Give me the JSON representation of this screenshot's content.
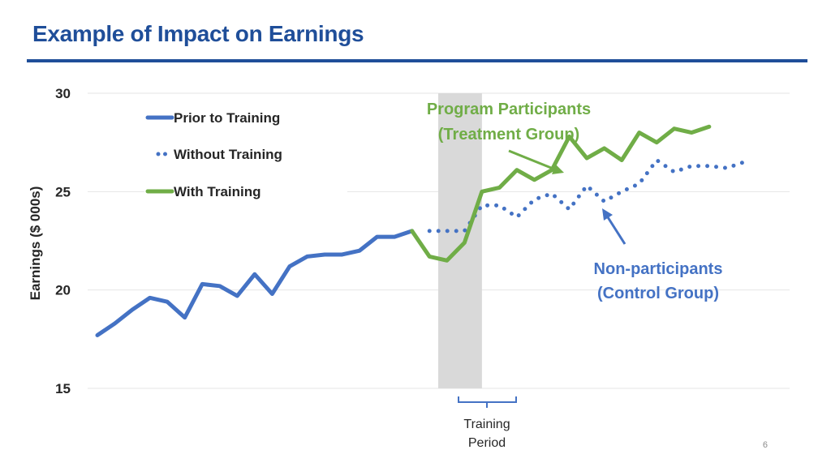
{
  "slide": {
    "title": "Example of Impact on Earnings",
    "page_number": "6"
  },
  "colors": {
    "title": "#1f4e99",
    "prior_line": "#4472c4",
    "with_line": "#70ad47",
    "callout_green": "#70ad47",
    "callout_blue": "#4472c4",
    "training_band": "#d9d9d9",
    "gridline": "#e6e6e6"
  },
  "annotations": {
    "treatment_line1": "Program Participants",
    "treatment_line2": "(Treatment Group)",
    "control_line1": "Non-participants",
    "control_line2": "(Control Group)",
    "training_line1": "Training",
    "training_line2": "Period"
  },
  "chart_data": {
    "type": "line",
    "ylabel": "Earnings ($ 000s)",
    "xlabel": "",
    "ylim": [
      15,
      30
    ],
    "yticks": [
      15,
      20,
      25,
      30
    ],
    "grid": true,
    "legend_position": "top-left",
    "x": [
      1,
      2,
      3,
      4,
      5,
      6,
      7,
      8,
      9,
      10,
      11,
      12,
      13,
      14,
      15,
      16,
      17,
      18,
      19,
      20,
      21,
      22,
      23,
      24,
      25,
      26,
      27,
      28,
      29,
      30,
      31,
      32,
      33,
      34,
      35,
      36,
      37,
      38,
      39,
      40
    ],
    "training_period": [
      20,
      22
    ],
    "series": [
      {
        "name": "Prior to Training",
        "style": "solid",
        "color": "#4472c4",
        "x": [
          1,
          2,
          3,
          4,
          5,
          6,
          7,
          8,
          9,
          10,
          11,
          12,
          13,
          14,
          15,
          16,
          17,
          18,
          19,
          20
        ],
        "values": [
          17.7,
          18.3,
          19.0,
          19.6,
          19.4,
          18.6,
          20.3,
          20.2,
          19.7,
          20.8,
          19.8,
          21.2,
          21.7,
          21.8,
          21.8,
          22.0,
          22.7,
          22.7,
          23.0,
          null
        ]
      },
      {
        "name": "Without Training",
        "style": "dotted",
        "color": "#4472c4",
        "x": [
          20,
          21,
          22,
          23,
          24,
          25,
          26,
          27,
          28,
          29,
          30,
          31,
          32,
          33,
          34,
          35,
          36,
          37,
          38,
          39,
          40
        ],
        "values": [
          23.0,
          23.0,
          23.0,
          24.3,
          24.3,
          23.7,
          24.6,
          24.9,
          24.1,
          25.3,
          24.5,
          25.0,
          25.4,
          26.6,
          26.0,
          26.3,
          26.3,
          26.2,
          26.5,
          null,
          null
        ]
      },
      {
        "name": "With Training",
        "style": "solid",
        "color": "#70ad47",
        "x": [
          19,
          20,
          21,
          22,
          23,
          24,
          25,
          26,
          27,
          28,
          29,
          30,
          31,
          32,
          33,
          34,
          35,
          36,
          37,
          38,
          39,
          40
        ],
        "values": [
          23.0,
          21.7,
          21.5,
          22.4,
          25.0,
          25.2,
          26.1,
          25.6,
          26.1,
          27.8,
          26.7,
          27.2,
          26.6,
          28.0,
          27.5,
          28.2,
          28.0,
          28.3,
          null,
          null,
          null,
          null
        ]
      }
    ]
  }
}
